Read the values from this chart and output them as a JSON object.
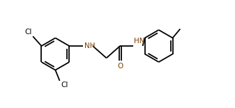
{
  "bg_color": "#ffffff",
  "line_color": "#000000",
  "nh_color": "#7B3F00",
  "o_color": "#7B3F00",
  "cl_color": "#000000",
  "line_width": 1.3,
  "figsize": [
    3.37,
    1.55
  ],
  "dpi": 100,
  "xlim": [
    0,
    10
  ],
  "ylim": [
    0,
    5
  ]
}
